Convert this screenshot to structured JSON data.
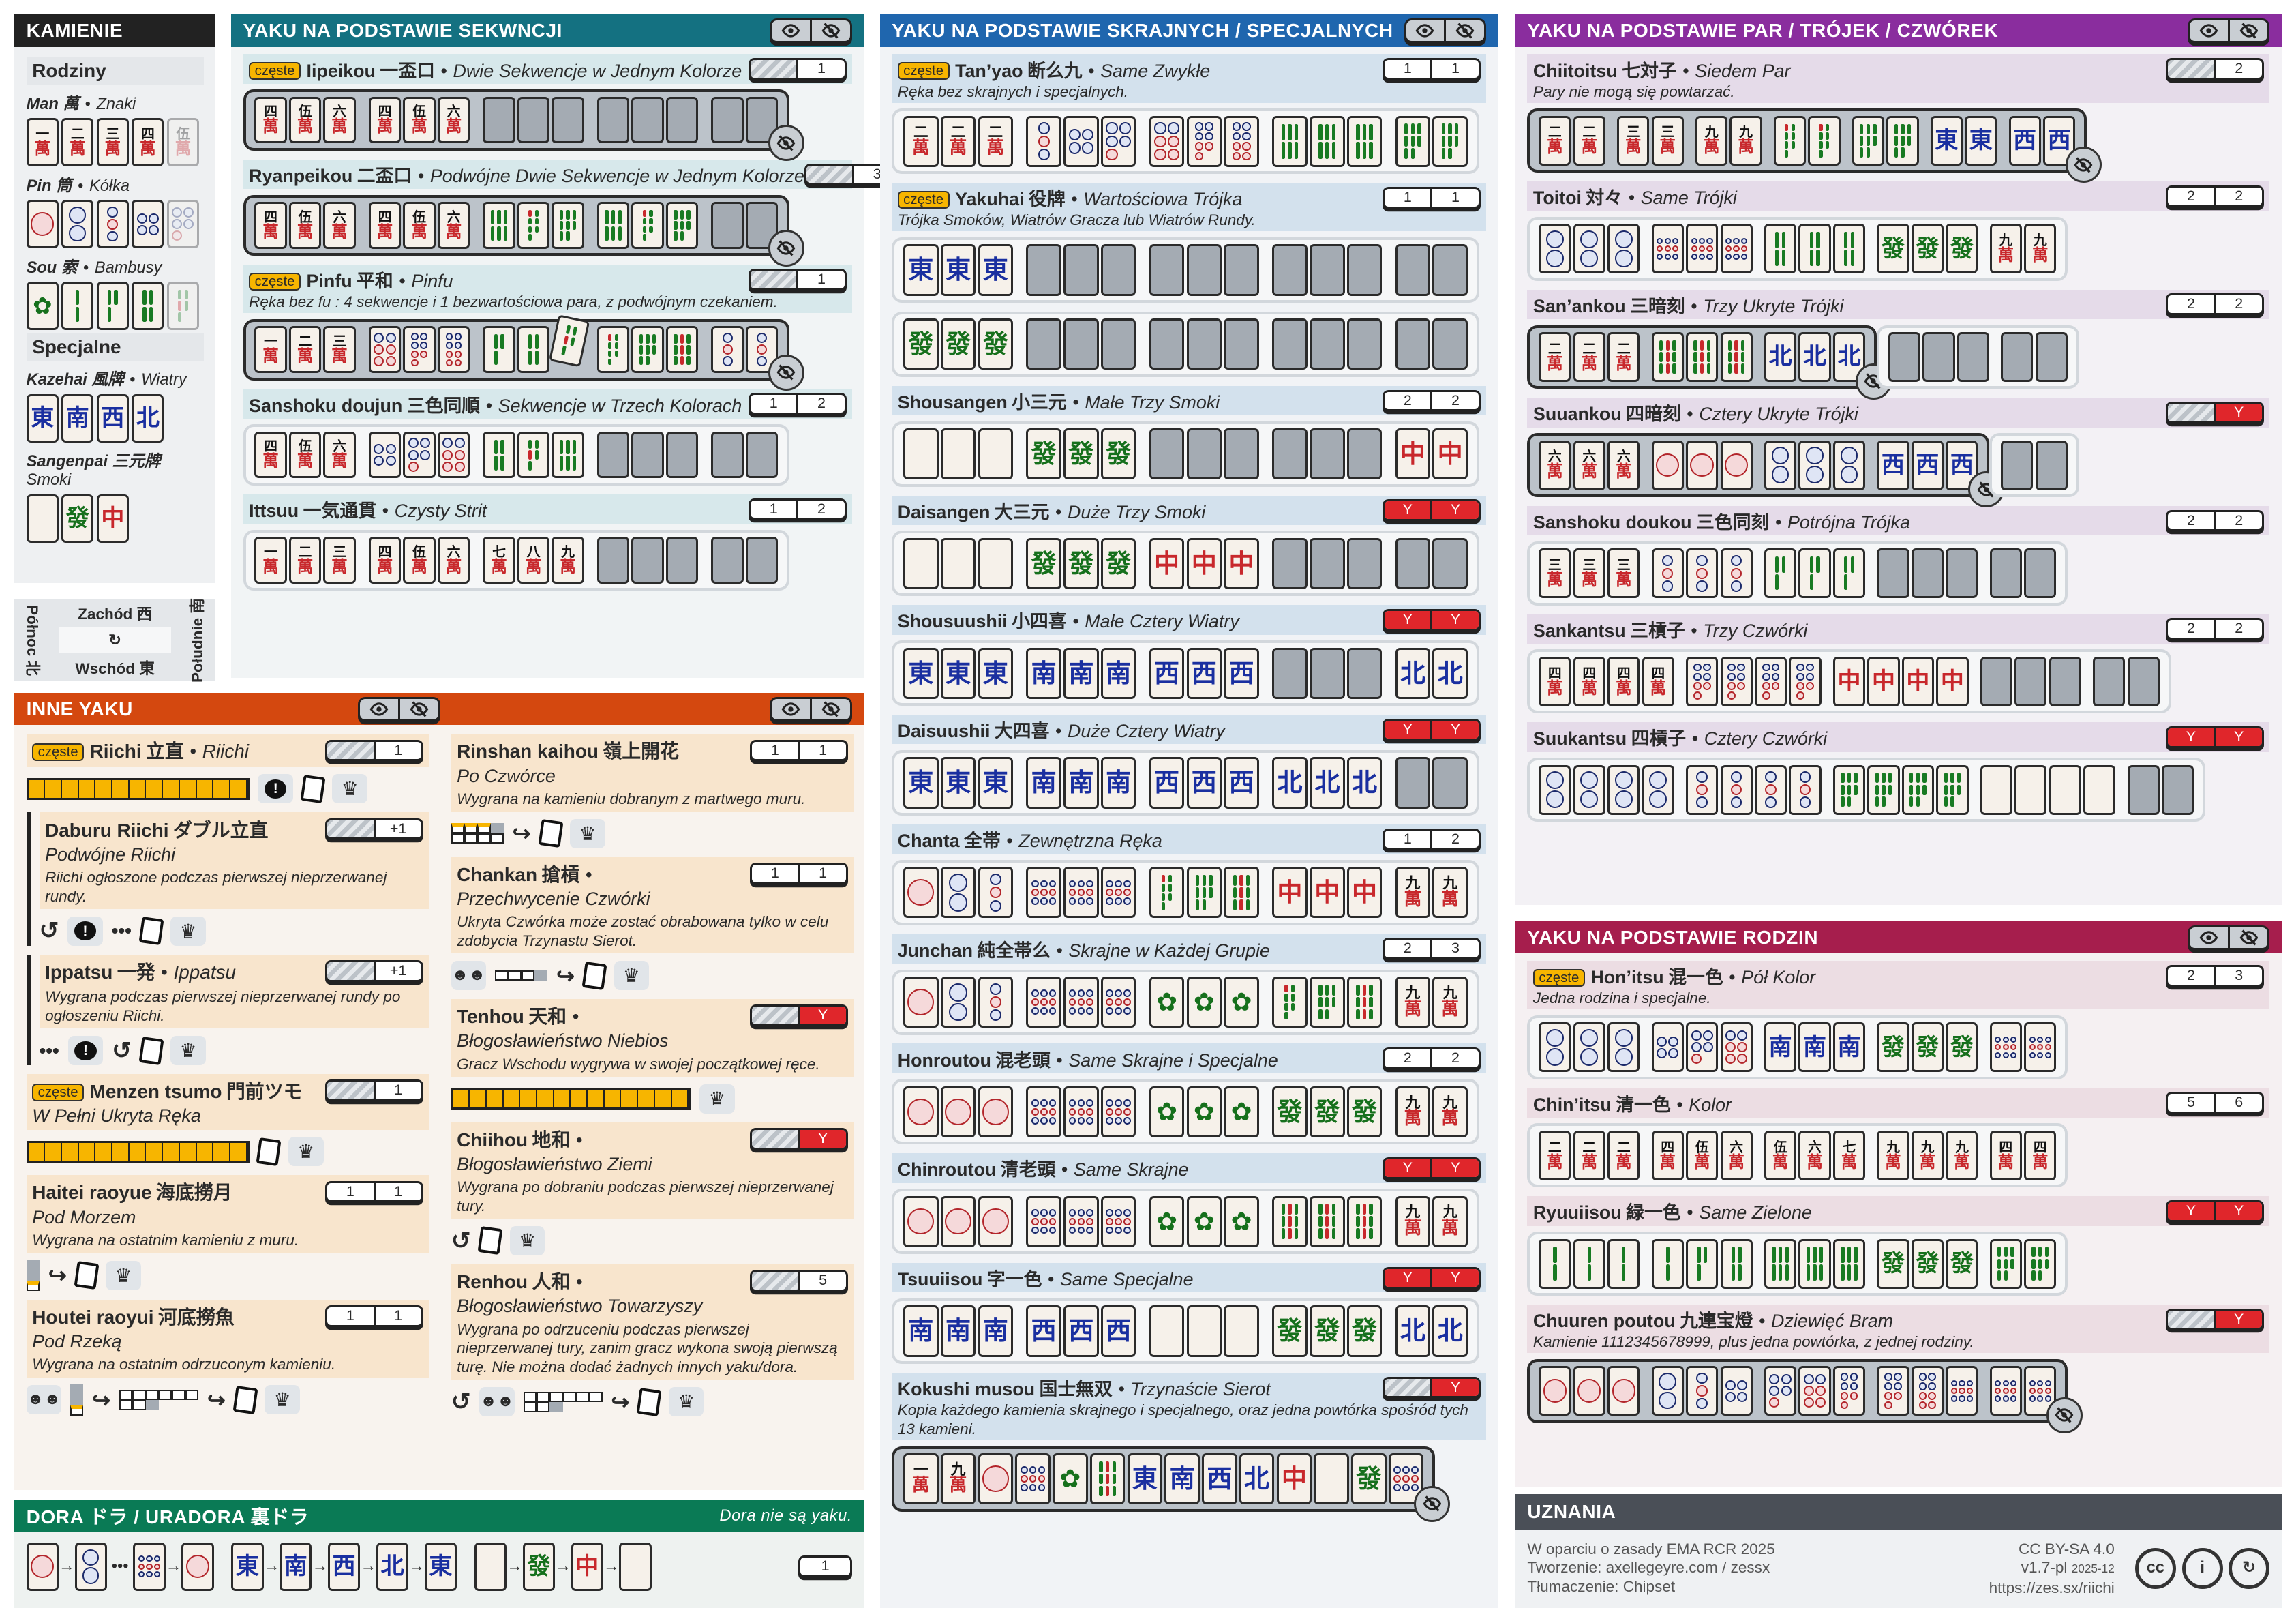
{
  "sep": "•",
  "common_badge": "częste",
  "colors": {
    "kamienie": "#222222",
    "seq": "#147181",
    "term": "#1f66ae",
    "pairs": "#8a2d9e",
    "families": "#a61e4d",
    "other": "#d4480f",
    "dora": "#0a7a55",
    "credits": "#4a4f57",
    "yakuman": "#e0262b",
    "badge": "#f7b500"
  },
  "kamienie": {
    "title": "KAMIENIE",
    "families_heading": "Rodziny",
    "suits": [
      {
        "name": "Man 萬",
        "tr": "Znaki",
        "tiles": [
          "m1",
          "m2",
          "m3",
          "m4",
          "m5~"
        ]
      },
      {
        "name": "Pin 筒",
        "tr": "Kółka",
        "tiles": [
          "p1",
          "p2",
          "p3",
          "p4",
          "p5~"
        ]
      },
      {
        "name": "Sou 索",
        "tr": "Bambusy",
        "tiles": [
          "s1",
          "s2",
          "s3",
          "s4",
          "s5~"
        ]
      }
    ],
    "special_heading": "Specjalne",
    "winds": {
      "name": "Kazehai 風牌",
      "tr": "Wiatry",
      "tiles": [
        "E",
        "S",
        "W",
        "N"
      ]
    },
    "dragons": {
      "name": "Sangenpai 三元牌",
      "tr": "Smoki",
      "tiles": [
        "Wd",
        "G",
        "R"
      ]
    }
  },
  "compass": {
    "west": "Zachód 西",
    "east": "Wschód 東",
    "north": "Północ 北",
    "south": "Południe 南"
  },
  "seq": {
    "title": "YAKU NA PODSTAWIE SEKWNCJI",
    "yaku": [
      {
        "badge": "częste",
        "name": "Iipeikou",
        "jp": "一盃口",
        "tr": "Dwie Sekwencje w Jednym Kolorze",
        "han": [
          null,
          "1"
        ],
        "hands": [
          [
            {
              "closed": true,
              "groups": [
                "m4 m5 m6",
                "m4 m5 m6",
                "x x x",
                "x x x",
                "x x"
              ]
            }
          ]
        ]
      },
      {
        "name": "Ryanpeikou",
        "jp": "二盃口",
        "tr": "Podwójne Dwie Sekwencje w Jednym Kolorze",
        "han": [
          null,
          "3"
        ],
        "hands": [
          [
            {
              "closed": true,
              "groups": [
                "m4 m5 m6",
                "m4 m5 m6",
                "s6 s7 s8",
                "s6 s7 s8",
                "x x"
              ]
            }
          ]
        ]
      },
      {
        "badge": "częste",
        "name": "Pinfu",
        "jp": "平和",
        "tr": "Pinfu",
        "desc": "Ręka bez fu : 4 sekwencje i 1 bezwartościowa para, z podwójnym czekaniem.",
        "han": [
          null,
          "1"
        ],
        "hands": [
          [
            {
              "closed": true,
              "groups": [
                "m1 m2 m3",
                "p6 p7 p8",
                "s3 s4 s5*",
                "s7 s8 s9",
                "p3 p3"
              ]
            }
          ]
        ]
      },
      {
        "name": "Sanshoku doujun",
        "jp": "三色同順",
        "tr": "Sekwencje w Trzech Kolorach",
        "han": [
          "1",
          "2"
        ],
        "hands": [
          [
            {
              "closed": false,
              "groups": [
                "m4 m5 m6",
                "p4 p5 p6",
                "s4 s5 s6",
                "x x x",
                "x x"
              ]
            }
          ]
        ]
      },
      {
        "name": "Ittsuu",
        "jp": "一気通貫",
        "tr": "Czysty Strit",
        "han": [
          "1",
          "2"
        ],
        "hands": [
          [
            {
              "closed": false,
              "groups": [
                "m1 m2 m3",
                "m4 m5 m6",
                "m7 m8 m9",
                "x x x",
                "x x"
              ]
            }
          ]
        ]
      }
    ]
  },
  "term": {
    "title": "YAKU NA PODSTAWIE SKRAJNYCH / SPECJALNYCH",
    "yaku": [
      {
        "badge": "częste",
        "name": "Tan’yao",
        "jp": "断么九",
        "tr": "Same Zwykłe",
        "desc": "Ręka bez skrajnych i specjalnych.",
        "han": [
          "1",
          "1"
        ],
        "hands": [
          [
            {
              "closed": false,
              "groups": [
                "m2 m2 m2",
                "p3 p4 p5",
                "p6 p7 p8",
                "s6 s6 s6",
                "s8 s8"
              ]
            }
          ]
        ]
      },
      {
        "badge": "częste",
        "name": "Yakuhai",
        "jp": "役牌",
        "tr": "Wartościowa Trójka",
        "desc": "Trójka Smoków, Wiatrów Gracza lub Wiatrów Rundy.",
        "han": [
          "1",
          "1"
        ],
        "hands": [
          [
            {
              "closed": false,
              "groups": [
                "E E E",
                "x x x",
                "x x x",
                "x x x",
                "x x"
              ]
            }
          ],
          [
            {
              "closed": false,
              "groups": [
                "G G G",
                "x x x",
                "x x x",
                "x x x",
                "x x"
              ]
            }
          ]
        ]
      },
      {
        "name": "Shousangen",
        "jp": "小三元",
        "tr": "Małe Trzy Smoki",
        "han": [
          "2",
          "2"
        ],
        "hands": [
          [
            {
              "closed": false,
              "groups": [
                "Wd Wd Wd",
                "G G G",
                "x x x",
                "x x x",
                "R R"
              ]
            }
          ]
        ]
      },
      {
        "name": "Daisangen",
        "jp": "大三元",
        "tr": "Duże Trzy Smoki",
        "han": [
          "Y",
          "Y"
        ],
        "hands": [
          [
            {
              "closed": false,
              "groups": [
                "Wd Wd Wd",
                "G G G",
                "R R R",
                "x x x",
                "x x"
              ]
            }
          ]
        ]
      },
      {
        "name": "Shousuushii",
        "jp": "小四喜",
        "tr": "Małe Cztery Wiatry",
        "han": [
          "Y",
          "Y"
        ],
        "hands": [
          [
            {
              "closed": false,
              "groups": [
                "E E E",
                "S S S",
                "W W W",
                "x x x",
                "N N"
              ]
            }
          ]
        ]
      },
      {
        "name": "Daisuushii",
        "jp": "大四喜",
        "tr": "Duże Cztery Wiatry",
        "han": [
          "Y",
          "Y"
        ],
        "hands": [
          [
            {
              "closed": false,
              "groups": [
                "E E E",
                "S S S",
                "W W W",
                "N N N",
                "x x"
              ]
            }
          ]
        ]
      },
      {
        "name": "Chanta",
        "jp": "全帯",
        "tr": "Zewnętrzna Ręka",
        "han": [
          "1",
          "2"
        ],
        "hands": [
          [
            {
              "closed": false,
              "groups": [
                "p1 p2 p3",
                "p9 p9 p9",
                "s7 s8 s9",
                "R R R",
                "m9 m9"
              ]
            }
          ]
        ]
      },
      {
        "name": "Junchan",
        "jp": "純全帯么",
        "tr": "Skrajne w Każdej Grupie",
        "han": [
          "2",
          "3"
        ],
        "hands": [
          [
            {
              "closed": false,
              "groups": [
                "p1 p2 p3",
                "p9 p9 p9",
                "s1 s1 s1",
                "s7 s8 s9",
                "m9 m9"
              ]
            }
          ]
        ]
      },
      {
        "name": "Honroutou",
        "jp": "混老頭",
        "tr": "Same Skrajne i Specjalne",
        "han": [
          "2",
          "2"
        ],
        "hands": [
          [
            {
              "closed": false,
              "groups": [
                "p1 p1 p1",
                "p9 p9 p9",
                "s1 s1 s1",
                "G G G",
                "m9 m9"
              ]
            }
          ]
        ]
      },
      {
        "name": "Chinroutou",
        "jp": "清老頭",
        "tr": "Same Skrajne",
        "han": [
          "Y",
          "Y"
        ],
        "hands": [
          [
            {
              "closed": false,
              "groups": [
                "p1 p1 p1",
                "p9 p9 p9",
                "s1 s1 s1",
                "s9 s9 s9",
                "m9 m9"
              ]
            }
          ]
        ]
      },
      {
        "name": "Tsuuiisou",
        "jp": "字一色",
        "tr": "Same Specjalne",
        "han": [
          "Y",
          "Y"
        ],
        "hands": [
          [
            {
              "closed": false,
              "groups": [
                "S S S",
                "W W W",
                "Wd Wd Wd",
                "G G G",
                "N N"
              ]
            }
          ]
        ]
      },
      {
        "name": "Kokushi musou",
        "jp": "国士無双",
        "tr": "Trzynaście Sierot",
        "desc": "Kopia każdego kamienia skrajnego i specjalnego, oraz jedna powtórka spośród tych 13 kamieni.",
        "han": [
          null,
          "Y"
        ],
        "hands": [
          [
            {
              "closed": true,
              "groups": [
                "m1 m9 p1 p9 s1 s9 E S W N R Wd G p9"
              ]
            }
          ]
        ]
      }
    ]
  },
  "pairs": {
    "title": "YAKU NA PODSTAWIE PAR / TRÓJEK / CZWÓREK",
    "yaku": [
      {
        "name": "Chiitoitsu",
        "jp": "七対子",
        "tr": "Siedem Par",
        "desc": "Pary nie mogą się powtarzać.",
        "han": [
          null,
          "2"
        ],
        "hands": [
          [
            {
              "closed": true,
              "groups": [
                "m2 m2",
                "m3 m3",
                "m9 m9",
                "s7 s7",
                "s8 s8",
                "E E",
                "W W"
              ]
            }
          ]
        ]
      },
      {
        "name": "Toitoi",
        "jp": "対々",
        "tr": "Same Trójki",
        "han": [
          "2",
          "2"
        ],
        "hands": [
          [
            {
              "closed": false,
              "groups": [
                "p2 p2 p2",
                "p9 p9 p9",
                "s4 s4 s4",
                "G G G",
                "m9 m9"
              ]
            }
          ]
        ]
      },
      {
        "name": "San’ankou",
        "jp": "三暗刻",
        "tr": "Trzy Ukryte Trójki",
        "han": [
          "2",
          "2"
        ],
        "hands": [
          [
            {
              "closed": true,
              "groups": [
                "m2 m2 m2",
                "s9 s9 s9",
                "N N N"
              ]
            },
            {
              "closed": false,
              "groups": [
                "x x x",
                "x x"
              ]
            }
          ]
        ]
      },
      {
        "name": "Suuankou",
        "jp": "四暗刻",
        "tr": "Cztery Ukryte Trójki",
        "han": [
          null,
          "Y"
        ],
        "hands": [
          [
            {
              "closed": true,
              "groups": [
                "m6 m6 m6",
                "p1 p1 p1",
                "p2 p2 p2",
                "W W W"
              ]
            },
            {
              "closed": false,
              "groups": [
                "x x"
              ]
            }
          ]
        ]
      },
      {
        "name": "Sanshoku doukou",
        "jp": "三色同刻",
        "tr": "Potrójna Trójka",
        "han": [
          "2",
          "2"
        ],
        "hands": [
          [
            {
              "closed": false,
              "groups": [
                "m3 m3 m3",
                "p3 p3 p3",
                "s3 s3 s3",
                "x x x",
                "x x"
              ]
            }
          ]
        ]
      },
      {
        "name": "Sankantsu",
        "jp": "三槓子",
        "tr": "Trzy Czwórki",
        "han": [
          "2",
          "2"
        ],
        "hands": [
          [
            {
              "closed": false,
              "groups": [
                "m4 m4 m4 m4",
                "p7 p7 p7 p7",
                "R R R R",
                "x x x",
                "x x"
              ]
            }
          ]
        ]
      },
      {
        "name": "Suukantsu",
        "jp": "四槓子",
        "tr": "Cztery Czwórki",
        "han": [
          "Y",
          "Y"
        ],
        "hands": [
          [
            {
              "closed": false,
              "groups": [
                "p2 p2 p2 p2",
                "p3 p3 p3 p3",
                "s8 s8 s8 s8",
                "Wd Wd Wd Wd",
                "x x"
              ]
            }
          ]
        ]
      }
    ]
  },
  "families": {
    "title": "YAKU NA PODSTAWIE RODZIN",
    "yaku": [
      {
        "badge": "częste",
        "name": "Hon’itsu",
        "jp": "混一色",
        "tr": "Pół Kolor",
        "desc": "Jedna rodzina i specjalne.",
        "han": [
          "2",
          "3"
        ],
        "hands": [
          [
            {
              "closed": false,
              "groups": [
                "p2 p2 p2",
                "p4 p5 p6",
                "S S S",
                "G G G",
                "p9 p9"
              ]
            }
          ]
        ]
      },
      {
        "name": "Chin’itsu",
        "jp": "清一色",
        "tr": "Kolor",
        "han": [
          "5",
          "6"
        ],
        "hands": [
          [
            {
              "closed": false,
              "groups": [
                "m2 m2 m2",
                "m4 m5 m6",
                "m5 m6 m7",
                "m9 m9 m9",
                "m4 m4"
              ]
            }
          ]
        ]
      },
      {
        "name": "Ryuuiisou",
        "jp": "緑一色",
        "tr": "Same Zielone",
        "han": [
          "Y",
          "Y"
        ],
        "hands": [
          [
            {
              "closed": false,
              "groups": [
                "s2 s2 s2",
                "s2 s3 s4",
                "s6 s6 s6",
                "G G G",
                "s8 s8"
              ]
            }
          ]
        ]
      },
      {
        "name": "Chuuren poutou",
        "jp": "九連宝燈",
        "tr": "Dziewięć Bram",
        "desc": "Kamienie 1112345678999, plus jedna powtórka, z jednej rodziny.",
        "han": [
          null,
          "Y"
        ],
        "hands": [
          [
            {
              "closed": true,
              "groups": [
                "p1 p1 p1",
                "p2 p3 p4",
                "p5 p6 p7",
                "p7 p8 p9",
                "p9 p9"
              ]
            }
          ]
        ]
      }
    ]
  },
  "other": {
    "title": "INNE YAKU",
    "left": [
      {
        "badge": "częste",
        "name": "Riichi",
        "jp": "立直",
        "tr": "Riichi",
        "inline": true,
        "han": [
          null,
          "1"
        ],
        "icons": [
          "bar13",
          "exclaim",
          "tile",
          "crown"
        ]
      },
      {
        "name": "Daburu Riichi",
        "jp": "ダブル立直",
        "tr": "Podwójne Riichi",
        "desc": "Riichi ogłoszone podczas pierwszej nieprzerwanej rundy.",
        "han": [
          null,
          "+1"
        ],
        "nested": true,
        "icons": [
          "undo",
          "exclaim",
          "dots",
          "tile",
          "crown"
        ]
      },
      {
        "name": "Ippatsu",
        "jp": "一発",
        "tr": "Ippatsu",
        "inline": true,
        "desc": "Wygrana podczas pierwszej nieprzerwanej rundy po ogłoszeniu Riichi.",
        "han": [
          null,
          "+1"
        ],
        "nested": true,
        "icons": [
          "dots",
          "exclaim",
          "undo",
          "tile",
          "crown"
        ]
      },
      {
        "badge": "częste",
        "name": "Menzen tsumo",
        "jp": "門前ツモ",
        "tr": "W Pełni Ukryta Ręka",
        "han": [
          null,
          "1"
        ],
        "icons": [
          "bar13",
          "tile",
          "crown"
        ]
      },
      {
        "name": "Haitei raoyue",
        "jp": "海底撈月",
        "tr": "Pod Morzem",
        "desc": "Wygrana na ostatnim kamieniu z muru.",
        "han": [
          "1",
          "1"
        ],
        "icons": [
          "wall",
          "arrow",
          "tile",
          "crown"
        ]
      },
      {
        "name": "Houtei raoyui",
        "jp": "河底撈魚",
        "tr": "Pod Rzeką",
        "desc": "Wygrana na ostatnim odrzuconym kamieniu.",
        "han": [
          "1",
          "1"
        ],
        "icons": [
          "people",
          "wall",
          "arrow",
          "discards",
          "arrow",
          "tile",
          "crown"
        ]
      }
    ],
    "right": [
      {
        "name": "Rinshan kaihou",
        "jp": "嶺上開花",
        "tr": "Po Czwórce",
        "desc": "Wygrana na kamieniu dobranym z martwego muru.",
        "han": [
          "1",
          "1"
        ],
        "icons": [
          "deadwall",
          "arrow",
          "tile",
          "crown"
        ]
      },
      {
        "name": "Chankan",
        "jp": "搶槓",
        "trailing": true,
        "tr": "Przechwycenie Czwórki",
        "desc": "Ukryta Czwórka może zostać obrabowana tylko w celu zdobycia Trzynastu Sierot.",
        "han": [
          "1",
          "1"
        ],
        "icons": [
          "people",
          "kan",
          "arrow",
          "tile",
          "crown"
        ]
      },
      {
        "name": "Tenhou",
        "jp": "天和",
        "trailing": true,
        "tr": "Błogosławieństwo Niebios",
        "desc": "Gracz Wschodu wygrywa w swojej początkowej ręce.",
        "han": [
          null,
          "Y"
        ],
        "icons": [
          "bar14",
          "crown"
        ]
      },
      {
        "name": "Chiihou",
        "jp": "地和",
        "trailing": true,
        "tr": "Błogosławieństwo Ziemi",
        "desc": "Wygrana po dobraniu podczas pierwszej nieprzerwanej tury.",
        "han": [
          null,
          "Y"
        ],
        "icons": [
          "undo",
          "tile",
          "crown"
        ]
      },
      {
        "name": "Renhou",
        "jp": "人和",
        "trailing": true,
        "tr": "Błogosławieństwo Towarzyszy",
        "desc": "Wygrana po odrzuceniu podczas pierwszej nieprzerwanej tury, zanim gracz wykona swoją pierwszą turę. Nie można dodać żadnych innych yaku/dora.",
        "han": [
          null,
          "5"
        ],
        "icons": [
          "undo",
          "people",
          "discards",
          "arrow",
          "tile",
          "crown"
        ]
      }
    ]
  },
  "dora": {
    "title": "DORA ドラ / URADORA 裏ドラ",
    "note": "Dora nie są yaku.",
    "chains": [
      [
        "p1",
        "p2",
        "...",
        "p9",
        "p1"
      ],
      [
        "E",
        "S",
        "W",
        "N",
        "E"
      ],
      [
        "Wd",
        "G",
        "R",
        "Wd"
      ]
    ],
    "value": "1"
  },
  "credits": {
    "title": "UZNANIA",
    "left": [
      "W oparciu o zasady EMA RCR 2025",
      "Tworzenie: axellegeyre.com / zessx",
      "Tłumaczenie: Chipset"
    ],
    "license": "CC BY-SA 4.0",
    "version": "v1.7-pl",
    "date": "2025-12",
    "url": "https://zes.sx/riichi",
    "license_icons": [
      "cc",
      "by",
      "sa"
    ]
  }
}
